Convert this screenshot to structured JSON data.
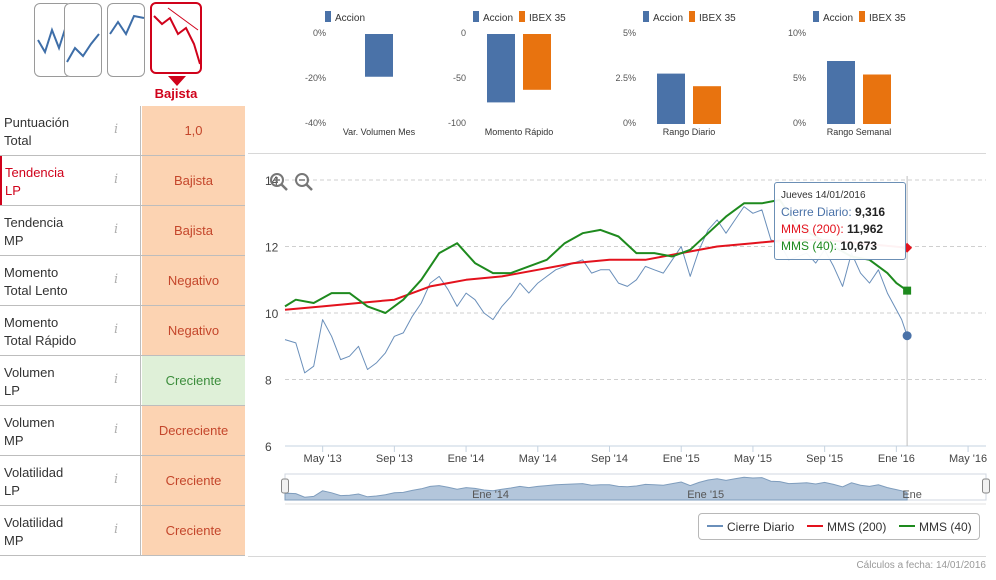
{
  "trend_selector": {
    "label": "Bajista",
    "options": [
      "Alcista",
      "Lateral",
      "Alcista",
      "Bajista"
    ],
    "selected_index": 3,
    "accent": "#d0021b"
  },
  "indicators": [
    {
      "name_line1": "Puntuación",
      "name_line2": "Total",
      "value": "1,0",
      "status": "neutral",
      "highlight": false
    },
    {
      "name_line1": "Tendencia",
      "name_line2": "LP",
      "value": "Bajista",
      "status": "negative",
      "highlight": true
    },
    {
      "name_line1": "Tendencia",
      "name_line2": "MP",
      "value": "Bajista",
      "status": "negative",
      "highlight": false
    },
    {
      "name_line1": "Momento",
      "name_line2": "Total Lento",
      "value": "Negativo",
      "status": "negative",
      "highlight": false
    },
    {
      "name_line1": "Momento",
      "name_line2": "Total Rápido",
      "value": "Negativo",
      "status": "negative",
      "highlight": false
    },
    {
      "name_line1": "Volumen",
      "name_line2": "LP",
      "value": "Creciente",
      "status": "positive",
      "highlight": false
    },
    {
      "name_line1": "Volumen",
      "name_line2": "MP",
      "value": "Decreciente",
      "status": "negative",
      "highlight": false
    },
    {
      "name_line1": "Volatilidad",
      "name_line2": "LP",
      "value": "Creciente",
      "status": "negative",
      "highlight": false
    },
    {
      "name_line1": "Volatilidad",
      "name_line2": "MP",
      "value": "Creciente",
      "status": "negative",
      "highlight": false
    }
  ],
  "info_glyph": "i",
  "colors": {
    "accion": "#4a72a8",
    "ibex": "#e8730f",
    "cierre": "#6a8fba",
    "mms200": "#e3121d",
    "mms40": "#1e8a1e"
  },
  "chart_data": [
    {
      "type": "bar",
      "title": "Var. Volumen Mes",
      "legend": [
        "Accion"
      ],
      "series": [
        {
          "name": "Accion",
          "values": [
            -19
          ]
        }
      ],
      "ylim": [
        -40,
        0
      ],
      "ticks": [
        "0%",
        "-20%",
        "-40%"
      ],
      "tick_values": [
        0,
        -20,
        -40
      ]
    },
    {
      "type": "bar",
      "title": "Momento Rápido",
      "legend": [
        "Accion",
        "IBEX 35"
      ],
      "series": [
        {
          "name": "Accion",
          "values": [
            -76
          ]
        },
        {
          "name": "IBEX 35",
          "values": [
            -62
          ]
        }
      ],
      "ylim": [
        -100,
        0
      ],
      "ticks": [
        "0",
        "-50",
        "-100"
      ],
      "tick_values": [
        0,
        -50,
        -100
      ]
    },
    {
      "type": "bar",
      "title": "Rango Diario",
      "legend": [
        "Accion",
        "IBEX 35"
      ],
      "series": [
        {
          "name": "Accion",
          "values": [
            2.8
          ]
        },
        {
          "name": "IBEX 35",
          "values": [
            2.1
          ]
        }
      ],
      "ylim": [
        0,
        5
      ],
      "ticks": [
        "5%",
        "2.5%",
        "0%"
      ],
      "tick_values": [
        5,
        2.5,
        0
      ]
    },
    {
      "type": "bar",
      "title": "Rango Semanal",
      "legend": [
        "Accion",
        "IBEX 35"
      ],
      "series": [
        {
          "name": "Accion",
          "values": [
            7.0
          ]
        },
        {
          "name": "IBEX 35",
          "values": [
            5.5
          ]
        }
      ],
      "ylim": [
        0,
        10
      ],
      "ticks": [
        "10%",
        "5%",
        "0%"
      ],
      "tick_values": [
        10,
        5,
        0
      ]
    },
    {
      "type": "line",
      "title": "",
      "xlabel": "",
      "ylabel": "",
      "ylim": [
        6,
        14
      ],
      "y_ticks": [
        6,
        8,
        10,
        12,
        14
      ],
      "x_tick_labels": [
        "May '13",
        "Sep '13",
        "Ene '14",
        "May '14",
        "Sep '14",
        "Ene '15",
        "May '15",
        "Sep '15",
        "Ene '16",
        "May '16"
      ],
      "x_tick_months": [
        4,
        8,
        12,
        16,
        20,
        24,
        28,
        32,
        36,
        40
      ],
      "x_range_months": [
        1.9,
        41.0
      ],
      "series": [
        {
          "name": "Cierre Diario",
          "x": [
            1.9,
            2.5,
            3.0,
            3.5,
            4.0,
            4.5,
            5.0,
            5.5,
            6.0,
            6.5,
            7.0,
            7.5,
            8.0,
            8.5,
            9.0,
            9.5,
            10.0,
            10.5,
            11.0,
            11.5,
            12.0,
            12.5,
            13.0,
            13.5,
            14.0,
            14.5,
            15.0,
            15.5,
            16.0,
            16.5,
            17.0,
            17.5,
            18.0,
            18.5,
            19.0,
            19.5,
            20.0,
            20.5,
            21.0,
            21.5,
            22.0,
            22.5,
            23.0,
            23.5,
            24.0,
            24.5,
            25.0,
            25.5,
            26.0,
            26.5,
            27.0,
            27.5,
            28.0,
            28.5,
            29.0,
            29.5,
            30.0,
            30.5,
            31.0,
            31.5,
            32.0,
            32.5,
            33.0,
            33.5,
            34.0,
            34.5,
            35.0,
            35.5,
            36.0,
            36.3,
            36.6
          ],
          "values": [
            9.2,
            9.1,
            8.2,
            8.4,
            9.8,
            9.3,
            8.6,
            8.7,
            9.0,
            8.3,
            8.5,
            8.8,
            9.3,
            9.4,
            9.9,
            10.3,
            10.9,
            11.1,
            10.7,
            10.2,
            10.6,
            10.4,
            10.0,
            9.8,
            10.2,
            10.5,
            10.9,
            10.6,
            10.9,
            11.1,
            11.3,
            11.4,
            11.5,
            11.6,
            11.2,
            11.3,
            11.3,
            10.9,
            10.8,
            11.0,
            11.4,
            11.3,
            11.2,
            11.6,
            12.0,
            11.1,
            11.9,
            12.5,
            12.8,
            12.4,
            12.8,
            13.2,
            13.0,
            13.1,
            12.2,
            12.1,
            11.6,
            11.7,
            11.8,
            11.5,
            11.9,
            11.4,
            10.8,
            11.8,
            11.2,
            10.9,
            11.3,
            10.6,
            10.1,
            9.8,
            9.316
          ]
        },
        {
          "name": "MMS (200)",
          "x": [
            1.9,
            4,
            6,
            8,
            10,
            11,
            12,
            14,
            16,
            18,
            20,
            22,
            24,
            26,
            28,
            30,
            32,
            34,
            36.6
          ],
          "values": [
            10.1,
            10.2,
            10.3,
            10.4,
            10.8,
            10.9,
            11.0,
            11.1,
            11.3,
            11.5,
            11.6,
            11.6,
            11.8,
            12.0,
            12.1,
            12.2,
            12.2,
            12.1,
            11.962
          ]
        },
        {
          "name": "MMS (40)",
          "x": [
            1.9,
            2.5,
            3.5,
            4.5,
            5.5,
            6.5,
            7.5,
            8.5,
            9.5,
            10.5,
            11.5,
            12.5,
            13.5,
            14.5,
            15.5,
            16.5,
            17.5,
            18.5,
            19.5,
            20.5,
            21.5,
            22.5,
            23.5,
            24.5,
            25.5,
            26.5,
            27.5,
            28.5,
            29.5,
            30.5,
            31.5,
            32.5,
            33.5,
            34.5,
            35.5,
            36.0,
            36.6
          ],
          "values": [
            10.2,
            10.4,
            10.3,
            10.6,
            10.6,
            10.2,
            10.0,
            10.4,
            11.0,
            11.8,
            12.1,
            11.5,
            11.2,
            11.2,
            11.4,
            11.6,
            12.1,
            12.4,
            12.5,
            12.3,
            11.8,
            11.8,
            11.7,
            11.9,
            12.4,
            12.9,
            13.3,
            13.3,
            13.4,
            12.6,
            12.3,
            12.0,
            11.7,
            11.6,
            11.2,
            10.9,
            10.673
          ]
        }
      ],
      "tooltip": {
        "date": "Jueves 14/01/2016",
        "items": [
          {
            "label": "Cierre Diario",
            "value": "9,316"
          },
          {
            "label": "MMS (200)",
            "value": "11,962"
          },
          {
            "label": "MMS (40)",
            "value": "10,673"
          }
        ]
      },
      "navigator": {
        "labels": [
          "Ene '14",
          "Ene '15",
          "Ene"
        ]
      },
      "legend": [
        "Cierre Diario",
        "MMS (200)",
        "MMS (40)"
      ]
    }
  ],
  "footer": "Cálculos a fecha: 14/01/2016"
}
